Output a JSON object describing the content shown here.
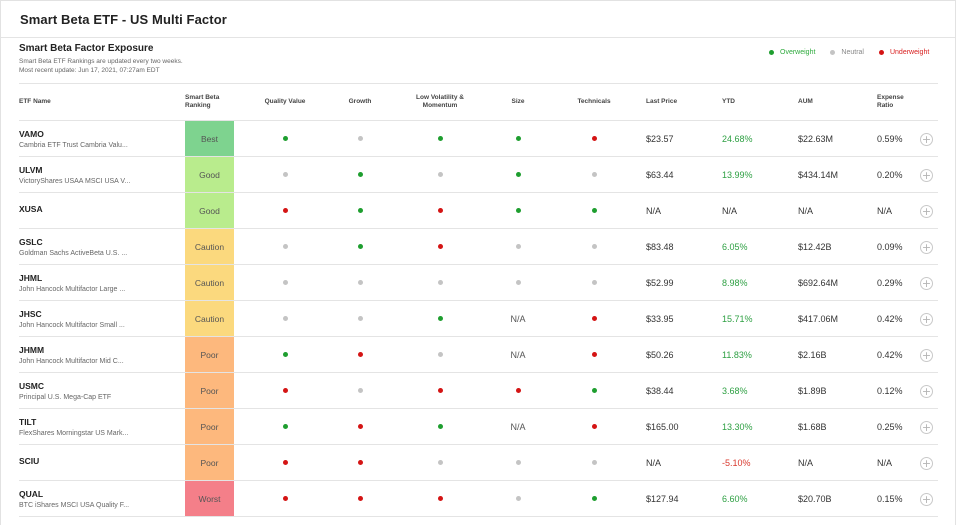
{
  "header": {
    "title": "Smart Beta ETF  -  US Multi Factor"
  },
  "section": {
    "title": "Smart Beta Factor Exposure",
    "subtitle_line1": "Smart Beta ETF Rankings are updated every two weeks.",
    "subtitle_line2": "Most recent update: Jun 17, 2021, 07:27am EDT"
  },
  "legend": {
    "overweight": "Overweight",
    "neutral": "Neutral",
    "underweight": "Underweight",
    "colors": {
      "overweight": "#1e9e2f",
      "neutral": "#c4c4c4",
      "underweight": "#d41414"
    }
  },
  "columns": {
    "etf_name": "ETF Name",
    "ranking_line1": "Smart Beta",
    "ranking_line2": "Ranking",
    "quality_value": "Quality Value",
    "growth": "Growth",
    "low_vol_line1": "Low Volatility &",
    "low_vol_line2": "Momentum",
    "size": "Size",
    "technicals": "Technicals",
    "last_price": "Last Price",
    "ytd": "YTD",
    "aum": "AUM",
    "expense_line1": "Expense",
    "expense_line2": "Ratio"
  },
  "rows": [
    {
      "ticker": "VAMO",
      "name": "Cambria ETF Trust Cambria Valu...",
      "ranking": "Best",
      "quality_value": "over",
      "growth": "neutral",
      "low_volatility": "over",
      "size": "over",
      "technicals": "under",
      "last_price": "$23.57",
      "ytd": "24.68%",
      "ytd_sign": "pos",
      "aum": "$22.63M",
      "expense_ratio": "0.59%"
    },
    {
      "ticker": "ULVM",
      "name": "VictoryShares USAA MSCI USA V...",
      "ranking": "Good",
      "quality_value": "neutral",
      "growth": "over",
      "low_volatility": "neutral",
      "size": "over",
      "technicals": "neutral",
      "last_price": "$63.44",
      "ytd": "13.99%",
      "ytd_sign": "pos",
      "aum": "$434.14M",
      "expense_ratio": "0.20%"
    },
    {
      "ticker": "XUSA",
      "name": "",
      "ranking": "Good",
      "quality_value": "under",
      "growth": "over",
      "low_volatility": "under",
      "size": "over",
      "technicals": "over",
      "last_price": "N/A",
      "ytd": "N/A",
      "ytd_sign": "na",
      "aum": "N/A",
      "expense_ratio": "N/A"
    },
    {
      "ticker": "GSLC",
      "name": "Goldman Sachs ActiveBeta U.S. ...",
      "ranking": "Caution",
      "quality_value": "neutral",
      "growth": "over",
      "low_volatility": "under",
      "size": "neutral",
      "technicals": "neutral",
      "last_price": "$83.48",
      "ytd": "6.05%",
      "ytd_sign": "pos",
      "aum": "$12.42B",
      "expense_ratio": "0.09%"
    },
    {
      "ticker": "JHML",
      "name": "John Hancock Multifactor Large ...",
      "ranking": "Caution",
      "quality_value": "neutral",
      "growth": "neutral",
      "low_volatility": "neutral",
      "size": "neutral",
      "technicals": "neutral",
      "last_price": "$52.99",
      "ytd": "8.98%",
      "ytd_sign": "pos",
      "aum": "$692.64M",
      "expense_ratio": "0.29%"
    },
    {
      "ticker": "JHSC",
      "name": "John Hancock Multifactor Small ...",
      "ranking": "Caution",
      "quality_value": "neutral",
      "growth": "neutral",
      "low_volatility": "over",
      "size": "N/A",
      "technicals": "under",
      "last_price": "$33.95",
      "ytd": "15.71%",
      "ytd_sign": "pos",
      "aum": "$417.06M",
      "expense_ratio": "0.42%"
    },
    {
      "ticker": "JHMM",
      "name": "John Hancock Multifactor Mid C...",
      "ranking": "Poor",
      "quality_value": "over",
      "growth": "under",
      "low_volatility": "neutral",
      "size": "N/A",
      "technicals": "under",
      "last_price": "$50.26",
      "ytd": "11.83%",
      "ytd_sign": "pos",
      "aum": "$2.16B",
      "expense_ratio": "0.42%"
    },
    {
      "ticker": "USMC",
      "name": "Principal U.S. Mega-Cap ETF",
      "ranking": "Poor",
      "quality_value": "under",
      "growth": "neutral",
      "low_volatility": "under",
      "size": "under",
      "technicals": "over",
      "last_price": "$38.44",
      "ytd": "3.68%",
      "ytd_sign": "pos",
      "aum": "$1.89B",
      "expense_ratio": "0.12%"
    },
    {
      "ticker": "TILT",
      "name": "FlexShares Morningstar US Mark...",
      "ranking": "Poor",
      "quality_value": "over",
      "growth": "under",
      "low_volatility": "over",
      "size": "N/A",
      "technicals": "under",
      "last_price": "$165.00",
      "ytd": "13.30%",
      "ytd_sign": "pos",
      "aum": "$1.68B",
      "expense_ratio": "0.25%"
    },
    {
      "ticker": "SCIU",
      "name": "",
      "ranking": "Poor",
      "quality_value": "under",
      "growth": "under",
      "low_volatility": "neutral",
      "size": "neutral",
      "technicals": "neutral",
      "last_price": "N/A",
      "ytd": "-5.10%",
      "ytd_sign": "neg",
      "aum": "N/A",
      "expense_ratio": "N/A"
    },
    {
      "ticker": "QUAL",
      "name": "BTC iShares MSCI USA Quality F...",
      "ranking": "Worst",
      "quality_value": "under",
      "growth": "under",
      "low_volatility": "under",
      "size": "neutral",
      "technicals": "over",
      "last_price": "$127.94",
      "ytd": "6.60%",
      "ytd_sign": "pos",
      "aum": "$20.70B",
      "expense_ratio": "0.15%"
    }
  ],
  "row_action": {
    "expand_icon": "plus-circle-icon",
    "glyph": "+"
  }
}
